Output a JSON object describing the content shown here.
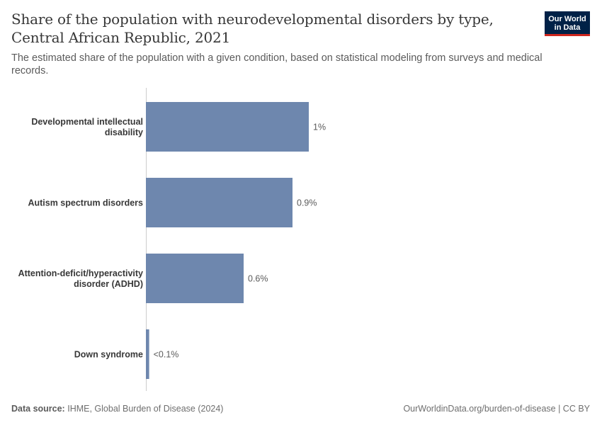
{
  "title": "Share of the population with neurodevelopmental disorders by type, Central African Republic, 2021",
  "subtitle": "The estimated share of the population with a given condition, based on statistical modeling from surveys and medical records.",
  "logo": {
    "line1": "Our World",
    "line2": "in Data"
  },
  "footer": {
    "source_label": "Data source:",
    "source_text": "IHME, Global Burden of Disease (2024)",
    "right_text": "OurWorldinData.org/burden-of-disease | CC BY"
  },
  "colors": {
    "bar": "#6e87ae",
    "axis": "#cccccc",
    "label": "#373737",
    "value": "#5b5b5b"
  },
  "chart_data": {
    "type": "bar",
    "orientation": "horizontal",
    "categories": [
      [
        "Developmental intellectual",
        "disability"
      ],
      [
        "Autism spectrum disorders"
      ],
      [
        "Attention-deficit/hyperactivity",
        "disorder (ADHD)"
      ],
      [
        "Down syndrome"
      ]
    ],
    "values": [
      1.0,
      0.9,
      0.6,
      0.02
    ],
    "value_labels": [
      "1%",
      "0.9%",
      "0.6%",
      "<0.1%"
    ],
    "unit": "%",
    "xlim": [
      0,
      1.0
    ]
  }
}
